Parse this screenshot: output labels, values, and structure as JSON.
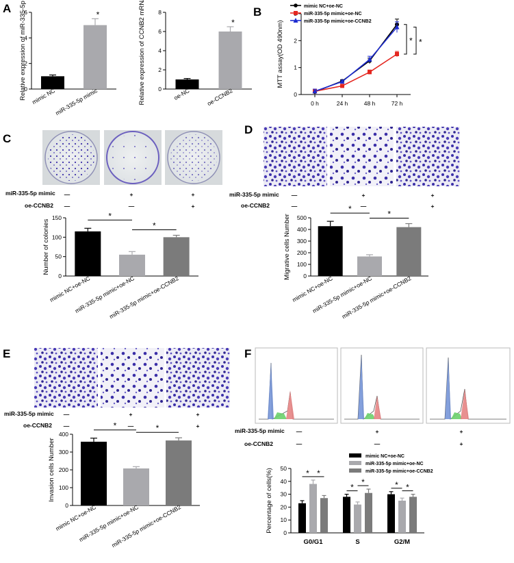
{
  "panels": {
    "a": "A",
    "b": "B",
    "c": "C",
    "d": "D",
    "e": "E",
    "f": "F"
  },
  "treatment_rows": {
    "mimic": "miR-335-5p mimic",
    "oe": "oe-CCNB2",
    "minus": "—",
    "plus": "+"
  },
  "colors": {
    "black": "#000000",
    "gray_light": "#a9a9ad",
    "gray_mid": "#7b7b7b",
    "blue_stain": "#3b2fa8",
    "line_red": "#e4261f",
    "line_blue": "#1c2bd0"
  },
  "chart_data": [
    {
      "id": "A-left",
      "type": "bar",
      "categories": [
        "mimic NC",
        "miR-335-5p mimic"
      ],
      "values": [
        1.0,
        5.0
      ],
      "errors": [
        0.1,
        0.5
      ],
      "colors": [
        "#000000",
        "#a9a9ad"
      ],
      "ylabel": "Relative expression of miR-335-5p",
      "ylim": [
        0,
        6
      ],
      "yticks": [
        "0",
        "2",
        "4",
        "6"
      ],
      "ytick_values": [
        0,
        2,
        4,
        6
      ],
      "significance": [
        {
          "bars": [
            1
          ],
          "label": "*"
        }
      ]
    },
    {
      "id": "A-right",
      "type": "bar",
      "categories": [
        "oe-NC",
        "oe-CCNB2"
      ],
      "values": [
        1.0,
        6.0
      ],
      "errors": [
        0.1,
        0.5
      ],
      "colors": [
        "#000000",
        "#a9a9ad"
      ],
      "ylabel": "Relative expression of CCNB2 mRNA",
      "ylim": [
        0,
        8
      ],
      "yticks": [
        "0",
        "2",
        "4",
        "6",
        "8"
      ],
      "ytick_values": [
        0,
        2,
        4,
        6,
        8
      ],
      "significance": [
        {
          "bars": [
            1
          ],
          "label": "*"
        }
      ]
    },
    {
      "id": "B",
      "type": "line",
      "categories": [
        "0 h",
        "24 h",
        "48 h",
        "72 h"
      ],
      "series": [
        {
          "name": "mimic NC+oe-NC",
          "values": [
            0.1,
            0.5,
            1.25,
            2.6
          ],
          "errors": [
            0.08,
            0.05,
            0.1,
            0.2
          ],
          "color": "#000000",
          "marker": "circle"
        },
        {
          "name": "miR-335-5p mimic+oe-NC",
          "values": [
            0.12,
            0.32,
            0.83,
            1.5
          ],
          "errors": [
            0.08,
            0.05,
            0.08,
            0.1
          ],
          "color": "#e4261f",
          "marker": "square"
        },
        {
          "name": "miR-335-5p mimic+oe-CCNB2",
          "values": [
            0.12,
            0.48,
            1.3,
            2.5
          ],
          "errors": [
            0.08,
            0.05,
            0.12,
            0.2
          ],
          "color": "#1c2bd0",
          "marker": "triangle"
        }
      ],
      "ylabel": "MTT assay(OD 490nm)",
      "ylim": [
        0,
        3
      ],
      "yticks": [
        "0",
        "1",
        "2",
        "3"
      ],
      "ytick_values": [
        0,
        1,
        2,
        3
      ],
      "significance": [
        "*",
        "*"
      ]
    },
    {
      "id": "C",
      "type": "bar",
      "categories": [
        "mimic NC+oe-NC",
        "miR-335-5p mimic+oe-NC",
        "miR-335-5p mimic+oe-CCNB2"
      ],
      "values": [
        115,
        55,
        100
      ],
      "errors": [
        8,
        8,
        5
      ],
      "colors": [
        "#000000",
        "#a9a9ad",
        "#7b7b7b"
      ],
      "ylabel": "Number of colonies",
      "ylim": [
        0,
        150
      ],
      "yticks": [
        "0",
        "50",
        "100",
        "150"
      ],
      "ytick_values": [
        0,
        50,
        100,
        150
      ],
      "significance": [
        {
          "bars": [
            0,
            1
          ],
          "label": "*"
        },
        {
          "bars": [
            1,
            2
          ],
          "label": "*"
        }
      ]
    },
    {
      "id": "D",
      "type": "bar",
      "categories": [
        "mimic NC+oe-NC",
        "miR-335-5p mimic+oe-NC",
        "miR-335-5p mimic+oe-CCNB2"
      ],
      "values": [
        428,
        168,
        420
      ],
      "errors": [
        42,
        15,
        30
      ],
      "colors": [
        "#000000",
        "#a9a9ad",
        "#7b7b7b"
      ],
      "ylabel": "Migrative cells Number",
      "ylim": [
        0,
        500
      ],
      "yticks": [
        "0",
        "100",
        "200",
        "300",
        "400",
        "500"
      ],
      "ytick_values": [
        0,
        100,
        200,
        300,
        400,
        500
      ],
      "significance": [
        {
          "bars": [
            0,
            1
          ],
          "label": "*"
        },
        {
          "bars": [
            1,
            2
          ],
          "label": "*"
        }
      ]
    },
    {
      "id": "E",
      "type": "bar",
      "categories": [
        "mimic NC+oe-NC",
        "miR-335-5p mimic+oe-NC",
        "miR-335-5p mimic+oe-CCNB2"
      ],
      "values": [
        358,
        208,
        365
      ],
      "errors": [
        20,
        10,
        15
      ],
      "colors": [
        "#000000",
        "#a9a9ad",
        "#7b7b7b"
      ],
      "ylabel": "Invasion cells Number",
      "ylim": [
        0,
        400
      ],
      "yticks": [
        "0",
        "100",
        "200",
        "300",
        "400"
      ],
      "ytick_values": [
        0,
        100,
        200,
        300,
        400
      ],
      "significance": [
        {
          "bars": [
            0,
            1
          ],
          "label": "*"
        },
        {
          "bars": [
            1,
            2
          ],
          "label": "*"
        }
      ]
    },
    {
      "id": "F",
      "type": "bar",
      "categories": [
        "G0/G1",
        "S",
        "G2/M"
      ],
      "series": [
        {
          "name": "mimic NC+oe-NC",
          "values": [
            23,
            28,
            30
          ],
          "errors": [
            2,
            2,
            2
          ],
          "color": "#000000"
        },
        {
          "name": "miR-335-5p mimic+oe-NC",
          "values": [
            38,
            22,
            25
          ],
          "errors": [
            3,
            2,
            2
          ],
          "color": "#a9a9ad"
        },
        {
          "name": "miR-335-5p mimic+oe-CCNB2",
          "values": [
            27,
            31,
            28
          ],
          "errors": [
            2,
            3,
            2
          ],
          "color": "#7b7b7b"
        }
      ],
      "ylabel": "Percentage of cells(%)",
      "ylim": [
        0,
        50
      ],
      "yticks": [
        "0",
        "10",
        "20",
        "30",
        "40",
        "50"
      ],
      "ytick_values": [
        0,
        10,
        20,
        30,
        40,
        50
      ],
      "significance": "*"
    }
  ]
}
